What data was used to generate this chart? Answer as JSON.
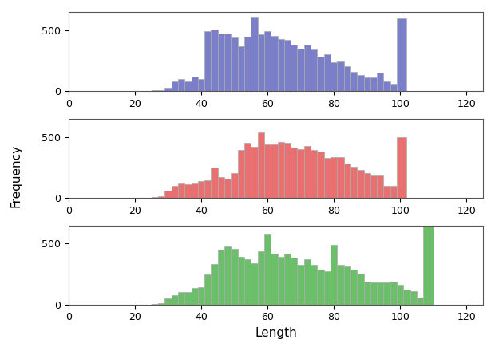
{
  "xlabel": "Length",
  "ylabel": "Frequency",
  "color1": "#7b7ec8",
  "color2": "#e87070",
  "color3": "#6bbf6b",
  "edgecolor": "#aaaaaa",
  "background": "#ffffff",
  "tick_fontsize": 9,
  "label_fontsize": 11,
  "xlim": [
    0,
    125
  ],
  "ylim": [
    0,
    650
  ],
  "xticks": [
    0,
    20,
    40,
    60,
    80,
    100,
    120
  ],
  "yticks": [
    0,
    500
  ],
  "bin_start": 25,
  "bin_width": 2,
  "h1": [
    5,
    10,
    25,
    80,
    100,
    80,
    120,
    100,
    490,
    505,
    470,
    470,
    440,
    365,
    445,
    610,
    465,
    490,
    455,
    425,
    420,
    380,
    350,
    380,
    345,
    280,
    305,
    240,
    245,
    205,
    160,
    130,
    115,
    110,
    150,
    80,
    60,
    600
  ],
  "h2": [
    5,
    10,
    60,
    100,
    115,
    110,
    115,
    135,
    145,
    250,
    170,
    160,
    205,
    390,
    450,
    420,
    535,
    440,
    440,
    460,
    450,
    415,
    400,
    425,
    390,
    380,
    330,
    335,
    335,
    280,
    255,
    230,
    205,
    185,
    185,
    95,
    95,
    500
  ],
  "h3": [
    5,
    10,
    50,
    75,
    100,
    100,
    135,
    145,
    245,
    330,
    450,
    480,
    460,
    390,
    375,
    340,
    440,
    580,
    415,
    390,
    420,
    385,
    325,
    375,
    325,
    290,
    275,
    490,
    325,
    315,
    290,
    255,
    190,
    185,
    185,
    185,
    190,
    160,
    125,
    110,
    55,
    645
  ]
}
